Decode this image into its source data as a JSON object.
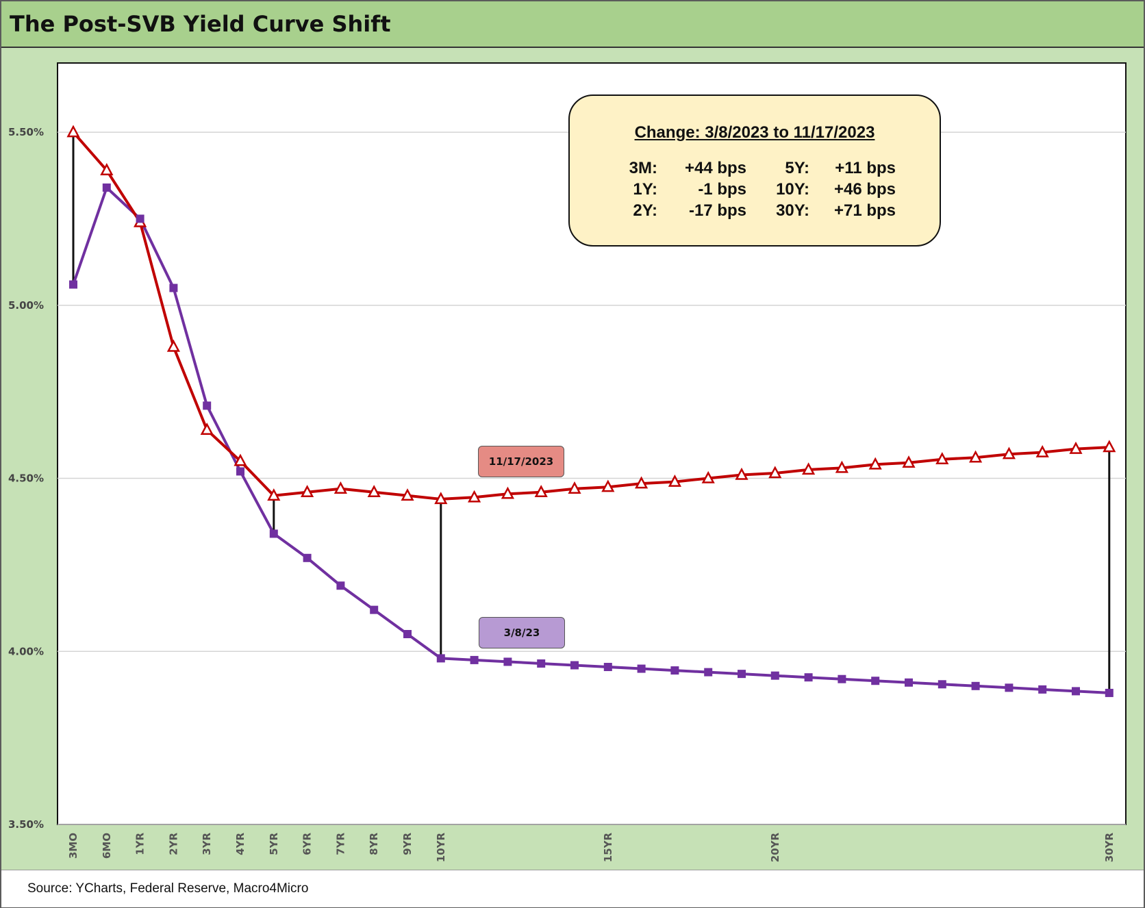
{
  "title": "The Post-SVB Yield Curve Shift",
  "source": "Source: YCharts, Federal Reserve, Macro4Micro",
  "annotation": {
    "title": "Change: 3/8/2023 to 11/17/2023",
    "rows": [
      {
        "l1": "3M:",
        "v1": "+44 bps",
        "l2": "5Y:",
        "v2": "+11 bps"
      },
      {
        "l1": "1Y:",
        "v1": "-1 bps",
        "l2": "10Y:",
        "v2": "+46 bps"
      },
      {
        "l1": "2Y:",
        "v1": "-17 bps",
        "l2": "30Y:",
        "v2": "+71 bps"
      }
    ]
  },
  "chart_data": {
    "type": "line",
    "ylim": [
      3.5,
      5.7
    ],
    "yticks": [
      3.5,
      4.0,
      4.5,
      5.0,
      5.5
    ],
    "ytick_labels": [
      "3.50%",
      "4.00%",
      "4.50%",
      "5.00%",
      "5.50%"
    ],
    "x_labels": [
      "3MO",
      "6MO",
      "1YR",
      "2YR",
      "3YR",
      "4YR",
      "5YR",
      "6YR",
      "7YR",
      "8YR",
      "9YR",
      "10YR",
      "",
      "",
      "",
      "",
      "15YR",
      "",
      "",
      "",
      "",
      "20YR",
      "",
      "",
      "",
      "",
      "",
      "",
      "",
      "",
      "",
      "30YR"
    ],
    "grid": true,
    "legend": "none",
    "series": [
      {
        "name": "11/17/2023",
        "color": "#c00000",
        "marker": "triangle",
        "values": [
          5.5,
          5.39,
          5.24,
          4.88,
          4.64,
          4.55,
          4.45,
          4.46,
          4.47,
          4.46,
          4.45,
          4.44,
          4.445,
          4.455,
          4.46,
          4.47,
          4.475,
          4.485,
          4.49,
          4.5,
          4.51,
          4.515,
          4.525,
          4.53,
          4.54,
          4.545,
          4.555,
          4.56,
          4.57,
          4.575,
          4.585,
          4.59
        ]
      },
      {
        "name": "3/8/23",
        "color": "#7030a0",
        "marker": "square",
        "values": [
          5.06,
          5.34,
          5.25,
          5.05,
          4.71,
          4.52,
          4.34,
          4.27,
          4.19,
          4.12,
          4.05,
          3.98,
          3.975,
          3.97,
          3.965,
          3.96,
          3.955,
          3.95,
          3.945,
          3.94,
          3.935,
          3.93,
          3.925,
          3.92,
          3.915,
          3.91,
          3.905,
          3.9,
          3.895,
          3.89,
          3.885,
          3.88
        ]
      }
    ],
    "change_bars_at": [
      "3MO",
      "5YR",
      "10YR",
      "30YR"
    ]
  }
}
